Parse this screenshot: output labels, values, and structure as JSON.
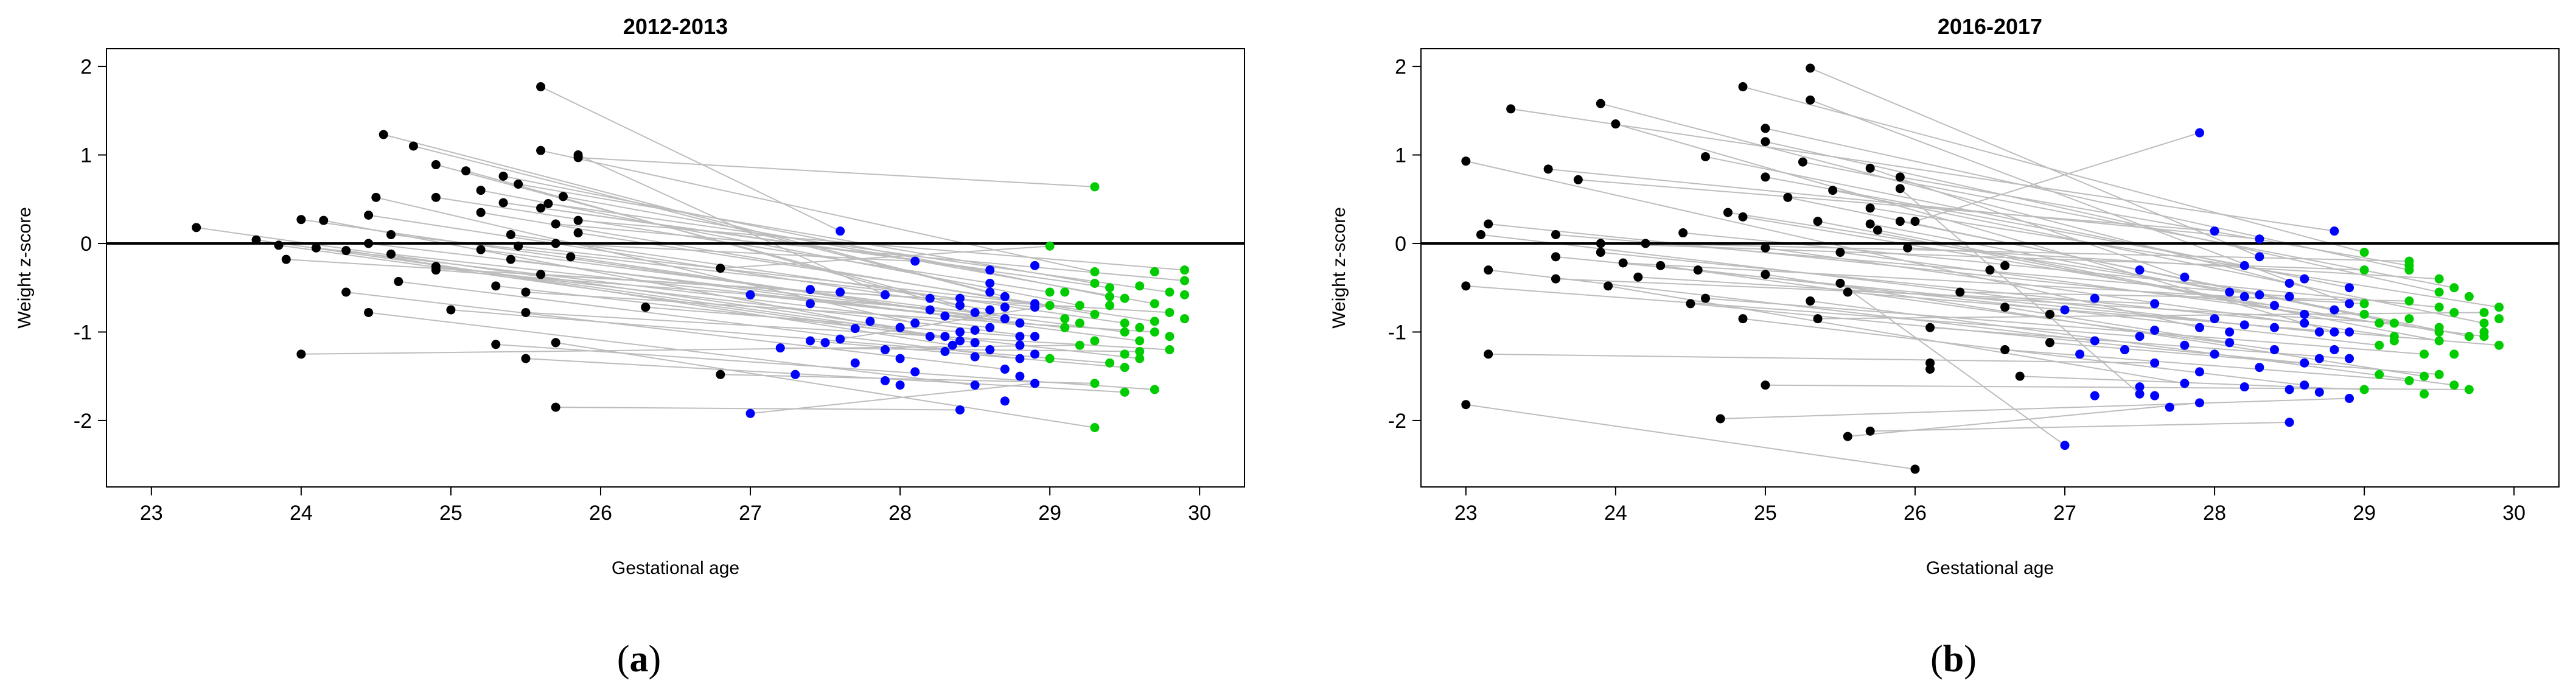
{
  "figure": {
    "captions": [
      "(a)",
      "(b)"
    ],
    "caption_letters": [
      "a",
      "b"
    ]
  },
  "colors": {
    "before_27": "#000000",
    "27_to_29": "#0000ff",
    "29_plus": "#00cc00",
    "trajectory_line": "#bdbdbd",
    "zero_line": "#000000"
  },
  "chart_data": [
    {
      "type": "scatter",
      "title": "2012-2013",
      "xlabel": "Gestational age",
      "ylabel": "Weight z-score",
      "xlim": [
        22.7,
        30.3
      ],
      "ylim": [
        -2.75,
        2.2
      ],
      "xticks": [
        23,
        24,
        25,
        26,
        27,
        28,
        29,
        30
      ],
      "yticks": [
        -2,
        -1,
        0,
        1,
        2
      ],
      "reference_line_y": 0,
      "grid": false,
      "pairs": [
        [
          23.3,
          0.18,
          28.0,
          -0.95
        ],
        [
          23.7,
          0.04,
          28.3,
          -1.05
        ],
        [
          23.85,
          -0.02,
          28.5,
          -1.12
        ],
        [
          23.9,
          -0.18,
          28.2,
          -0.62
        ],
        [
          24.0,
          -1.25,
          29.2,
          -1.15
        ],
        [
          24.0,
          0.27,
          28.8,
          -0.9
        ],
        [
          24.1,
          -0.05,
          28.6,
          -0.95
        ],
        [
          24.15,
          0.26,
          28.4,
          -1.1
        ],
        [
          24.3,
          -0.55,
          28.7,
          -1.42
        ],
        [
          24.3,
          -0.08,
          28.35,
          -1.15
        ],
        [
          24.45,
          0.0,
          28.7,
          -0.85
        ],
        [
          24.45,
          0.32,
          28.6,
          -0.75
        ],
        [
          24.5,
          0.52,
          28.1,
          -0.9
        ],
        [
          24.45,
          -0.78,
          28.5,
          -1.6
        ],
        [
          24.6,
          0.1,
          28.9,
          -0.72
        ],
        [
          24.6,
          -0.12,
          29.1,
          -0.95
        ],
        [
          24.55,
          1.23,
          28.6,
          -0.55
        ],
        [
          24.75,
          1.1,
          28.7,
          -0.6
        ],
        [
          24.65,
          -0.43,
          28.8,
          -1.3
        ],
        [
          24.9,
          0.89,
          28.4,
          -0.7
        ],
        [
          25.1,
          0.82,
          28.5,
          -0.78
        ],
        [
          24.9,
          -0.26,
          28.9,
          -1.05
        ],
        [
          24.9,
          -0.3,
          29.1,
          -0.85
        ],
        [
          24.9,
          0.52,
          29.0,
          -0.55
        ],
        [
          25.0,
          -0.75,
          29.4,
          -1.35
        ],
        [
          25.2,
          0.6,
          29.2,
          -0.7
        ],
        [
          25.2,
          0.35,
          29.3,
          -0.8
        ],
        [
          25.2,
          -0.07,
          29.5,
          -1.0
        ],
        [
          25.3,
          -0.48,
          29.6,
          -1.3
        ],
        [
          25.35,
          0.76,
          29.4,
          -0.6
        ],
        [
          25.3,
          -1.14,
          29.7,
          -1.65
        ],
        [
          25.35,
          0.46,
          28.6,
          -0.3
        ],
        [
          25.4,
          0.1,
          29.5,
          -0.9
        ],
        [
          25.4,
          -0.18,
          29.6,
          -1.1
        ],
        [
          25.45,
          0.67,
          29.3,
          -0.45
        ],
        [
          25.45,
          -0.03,
          28.9,
          -0.68
        ],
        [
          25.5,
          -1.3,
          29.5,
          -1.68
        ],
        [
          25.5,
          -0.55,
          29.7,
          -1.0
        ],
        [
          25.5,
          -0.78,
          29.8,
          -1.2
        ],
        [
          25.6,
          1.77,
          27.6,
          0.14
        ],
        [
          25.6,
          0.4,
          29.4,
          -0.5
        ],
        [
          25.6,
          -0.35,
          29.8,
          -0.78
        ],
        [
          25.6,
          1.05,
          29.3,
          -0.32
        ],
        [
          25.65,
          0.45,
          29.8,
          -0.55
        ],
        [
          25.7,
          0.22,
          29.9,
          -0.42
        ],
        [
          25.7,
          0.0,
          28.1,
          -0.2
        ],
        [
          25.7,
          -1.12,
          29.3,
          -2.08
        ],
        [
          25.7,
          -1.85,
          28.4,
          -1.88
        ],
        [
          25.75,
          0.53,
          29.7,
          -0.68
        ],
        [
          25.8,
          -0.15,
          28.2,
          -0.75
        ],
        [
          25.85,
          0.97,
          29.3,
          0.64
        ],
        [
          25.85,
          1.0,
          27.9,
          -0.58
        ],
        [
          25.85,
          0.26,
          29.9,
          -0.3
        ],
        [
          25.85,
          0.12,
          29.7,
          -0.88
        ],
        [
          26.3,
          -0.72,
          28.8,
          -1.05
        ],
        [
          26.8,
          -0.28,
          29.0,
          -0.03
        ],
        [
          26.8,
          -1.48,
          29.3,
          -1.58
        ],
        [
          27.0,
          -0.58,
          29.1,
          -0.95
        ],
        [
          27.0,
          -1.92,
          28.9,
          -1.58
        ],
        [
          27.2,
          -1.18,
          29.6,
          -1.22
        ],
        [
          27.4,
          -1.1,
          29.5,
          -1.4
        ],
        [
          27.6,
          -1.08,
          29.0,
          -0.7
        ]
      ],
      "extra_points": [
        [
          26.3,
          -0.72
        ],
        [
          27.3,
          -1.48
        ],
        [
          27.4,
          -0.52
        ],
        [
          27.4,
          -0.68
        ],
        [
          27.5,
          -1.12
        ],
        [
          27.6,
          -0.55
        ],
        [
          27.7,
          -0.96
        ],
        [
          27.7,
          -1.35
        ],
        [
          27.8,
          -0.88
        ],
        [
          27.9,
          -1.2
        ],
        [
          28.0,
          -1.3
        ],
        [
          28.1,
          -1.45
        ],
        [
          28.2,
          -1.05
        ],
        [
          28.3,
          -0.82
        ],
        [
          28.4,
          -0.62
        ],
        [
          28.5,
          -1.28
        ],
        [
          28.6,
          -0.45
        ],
        [
          28.7,
          -1.78
        ],
        [
          28.8,
          -1.15
        ],
        [
          28.9,
          -0.25
        ],
        [
          28.3,
          -1.22
        ],
        [
          28.5,
          -0.98
        ],
        [
          28.6,
          -1.2
        ],
        [
          28.7,
          -0.72
        ],
        [
          28.8,
          -1.5
        ],
        [
          28.9,
          -1.25
        ],
        [
          29.0,
          -1.3
        ],
        [
          29.1,
          -0.55
        ],
        [
          29.2,
          -0.9
        ],
        [
          29.4,
          -0.7
        ],
        [
          29.5,
          -0.62
        ],
        [
          29.6,
          -0.48
        ],
        [
          29.7,
          -0.32
        ],
        [
          29.8,
          -1.05
        ],
        [
          29.9,
          -0.58
        ],
        [
          29.9,
          -0.85
        ],
        [
          29.6,
          -0.95
        ],
        [
          28.0,
          -1.6
        ],
        [
          27.9,
          -1.55
        ],
        [
          28.4,
          -1.0
        ],
        [
          29.3,
          -1.1
        ],
        [
          29.5,
          -1.25
        ]
      ]
    },
    {
      "type": "scatter",
      "title": "2016-2017",
      "xlabel": "Gestational age",
      "ylabel": "Weight z-score",
      "xlim": [
        22.7,
        30.3
      ],
      "ylim": [
        -2.75,
        2.2
      ],
      "xticks": [
        23,
        24,
        25,
        26,
        27,
        28,
        29,
        30
      ],
      "yticks": [
        -2,
        -1,
        0,
        1,
        2
      ],
      "reference_line_y": 0,
      "grid": false,
      "pairs": [
        [
          23.0,
          0.93,
          27.9,
          -0.95
        ],
        [
          23.0,
          -0.48,
          27.5,
          -1.05
        ],
        [
          23.0,
          -1.82,
          26.0,
          -2.55
        ],
        [
          23.1,
          0.1,
          28.2,
          -0.92
        ],
        [
          23.15,
          0.22,
          28.4,
          -0.7
        ],
        [
          23.15,
          -0.3,
          27.2,
          -1.1
        ],
        [
          23.15,
          -1.25,
          27.6,
          -1.35
        ],
        [
          23.3,
          1.52,
          28.8,
          0.14
        ],
        [
          23.55,
          0.84,
          28.3,
          0.05
        ],
        [
          23.6,
          0.1,
          28.5,
          -0.6
        ],
        [
          23.6,
          -0.15,
          28.7,
          -1.0
        ],
        [
          23.6,
          -0.4,
          27.6,
          -0.68
        ],
        [
          23.75,
          0.72,
          28.0,
          0.14
        ],
        [
          23.9,
          1.58,
          28.5,
          -0.45
        ],
        [
          23.9,
          0.0,
          29.0,
          -0.3
        ],
        [
          23.9,
          -0.1,
          28.6,
          -0.9
        ],
        [
          23.95,
          -0.48,
          27.8,
          -1.58
        ],
        [
          24.0,
          1.35,
          28.8,
          -1.0
        ],
        [
          24.05,
          -0.22,
          29.0,
          -0.68
        ],
        [
          24.15,
          -0.38,
          29.2,
          -0.9
        ],
        [
          24.2,
          0.0,
          29.3,
          -0.2
        ],
        [
          24.3,
          -0.25,
          28.4,
          -1.2
        ],
        [
          24.45,
          0.12,
          29.5,
          -0.72
        ],
        [
          24.5,
          -0.68,
          28.6,
          -1.35
        ],
        [
          24.55,
          -0.3,
          29.1,
          -1.15
        ],
        [
          24.6,
          0.98,
          28.9,
          -0.5
        ],
        [
          24.6,
          -0.62,
          29.4,
          -1.25
        ],
        [
          24.75,
          0.35,
          28.3,
          -0.58
        ],
        [
          24.7,
          -1.98,
          28.9,
          -1.75
        ],
        [
          24.85,
          1.77,
          29.0,
          -0.1
        ],
        [
          24.85,
          0.3,
          29.1,
          -0.9
        ],
        [
          24.85,
          -0.85,
          28.6,
          -1.6
        ],
        [
          25.0,
          1.3,
          29.3,
          -0.3
        ],
        [
          25.0,
          1.15,
          29.5,
          -0.55
        ],
        [
          25.0,
          0.75,
          28.2,
          -0.25
        ],
        [
          25.0,
          -0.05,
          29.2,
          -1.05
        ],
        [
          25.0,
          -0.35,
          29.4,
          -1.5
        ],
        [
          25.0,
          -1.6,
          29.7,
          -1.65
        ],
        [
          25.15,
          0.52,
          29.5,
          -1.0
        ],
        [
          25.25,
          0.92,
          29.6,
          -0.5
        ],
        [
          25.3,
          1.98,
          28.3,
          -0.15
        ],
        [
          25.3,
          1.62,
          28.9,
          -0.68
        ],
        [
          25.3,
          -0.65,
          29.6,
          -1.6
        ],
        [
          25.35,
          0.25,
          29.5,
          -1.1
        ],
        [
          25.35,
          -0.85,
          29.8,
          -0.78
        ],
        [
          25.45,
          0.6,
          29.8,
          -0.9
        ],
        [
          25.5,
          -0.1,
          29.8,
          -1.05
        ],
        [
          25.5,
          -0.45,
          27.0,
          -2.28
        ],
        [
          25.55,
          -0.55,
          29.9,
          -1.15
        ],
        [
          25.55,
          -2.18,
          27.9,
          -1.8
        ],
        [
          25.7,
          0.4,
          29.9,
          -0.72
        ],
        [
          25.7,
          0.85,
          27.8,
          -0.38
        ],
        [
          25.7,
          -2.12,
          28.5,
          -2.02
        ],
        [
          25.7,
          0.22,
          28.1,
          -0.55
        ],
        [
          25.75,
          0.15,
          28.6,
          -0.8
        ],
        [
          25.9,
          0.75,
          29.3,
          -0.25
        ],
        [
          25.9,
          0.62,
          27.5,
          -1.7
        ],
        [
          25.9,
          0.25,
          29.7,
          -1.05
        ],
        [
          25.95,
          -0.05,
          29.5,
          -0.4
        ],
        [
          26.0,
          0.25,
          27.9,
          1.25
        ],
        [
          26.1,
          -0.95,
          28.9,
          -1.3
        ],
        [
          26.3,
          -0.55,
          29.3,
          -0.65
        ],
        [
          26.6,
          -0.72,
          28.1,
          -1.12
        ],
        [
          26.6,
          -1.2,
          29.3,
          -1.55
        ],
        [
          26.7,
          -1.5,
          29.0,
          -1.65
        ],
        [
          26.9,
          -1.12,
          29.5,
          -1.48
        ]
      ],
      "extra_points": [
        [
          26.1,
          -1.35
        ],
        [
          26.1,
          -1.42
        ],
        [
          26.5,
          -0.3
        ],
        [
          26.6,
          -0.25
        ],
        [
          26.9,
          -0.8
        ],
        [
          27.0,
          -0.75
        ],
        [
          27.1,
          -1.25
        ],
        [
          27.2,
          -0.62
        ],
        [
          27.4,
          -1.2
        ],
        [
          27.5,
          -0.3
        ],
        [
          27.6,
          -0.98
        ],
        [
          27.6,
          -1.72
        ],
        [
          27.7,
          -1.85
        ],
        [
          27.8,
          -1.15
        ],
        [
          27.9,
          -1.45
        ],
        [
          28.0,
          -0.85
        ],
        [
          28.0,
          -1.25
        ],
        [
          28.1,
          -1.0
        ],
        [
          28.2,
          -0.6
        ],
        [
          28.3,
          -1.4
        ],
        [
          28.4,
          -0.95
        ],
        [
          28.5,
          -1.65
        ],
        [
          28.6,
          -0.4
        ],
        [
          28.7,
          -1.3
        ],
        [
          28.8,
          -0.75
        ],
        [
          28.8,
          -1.2
        ],
        [
          28.9,
          -1.0
        ],
        [
          29.0,
          -0.8
        ],
        [
          29.1,
          -1.48
        ],
        [
          29.2,
          -1.1
        ],
        [
          29.3,
          -0.85
        ],
        [
          29.4,
          -1.7
        ],
        [
          29.5,
          -0.95
        ],
        [
          29.6,
          -1.25
        ],
        [
          29.7,
          -0.6
        ],
        [
          29.8,
          -1.0
        ],
        [
          29.9,
          -0.85
        ],
        [
          27.2,
          -1.72
        ],
        [
          27.5,
          -1.62
        ],
        [
          28.2,
          -1.62
        ],
        [
          28.7,
          -1.68
        ],
        [
          29.6,
          -0.78
        ]
      ]
    }
  ]
}
